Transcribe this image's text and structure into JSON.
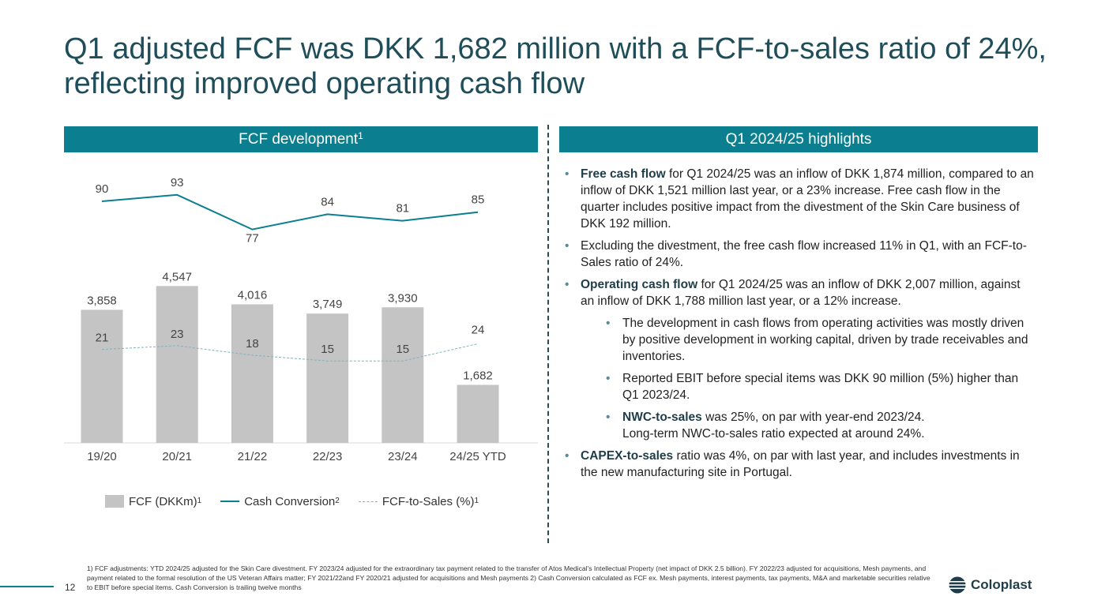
{
  "title": {
    "line1": "Q1 adjusted FCF was DKK 1,682 million with a FCF-to-sales ratio of 24%,",
    "line2": "reflecting improved operating cash flow"
  },
  "left_panel": {
    "header": "FCF development",
    "header_sup": "1"
  },
  "right_panel": {
    "header": "Q1 2024/25 highlights"
  },
  "colors": {
    "accent": "#0b7f8f",
    "bar": "#c4c4c4",
    "dashed_line": "#7fb3bc",
    "title": "#1f4e5a"
  },
  "chart_data": {
    "type": "bar",
    "categories": [
      "19/20",
      "20/21",
      "21/22",
      "22/23",
      "23/24",
      "24/25 YTD"
    ],
    "series": [
      {
        "name": "FCF (DKKm)",
        "name_sup": "1",
        "type": "bar",
        "values": [
          3858,
          4547,
          4016,
          3749,
          3930,
          1682
        ],
        "labels": [
          "3,858",
          "4,547",
          "4,016",
          "3,749",
          "3,930",
          "1,682"
        ]
      },
      {
        "name": "Cash Conversion",
        "name_sup": "2",
        "type": "line",
        "values": [
          90,
          93,
          77,
          84,
          81,
          85
        ]
      },
      {
        "name": "FCF-to-Sales (%)",
        "name_sup": "1",
        "type": "line-dashed",
        "values": [
          21,
          23,
          18,
          15,
          15,
          24
        ]
      }
    ],
    "ylim": [
      0,
      5000
    ],
    "grid": false,
    "legend": "bottom"
  },
  "highlights": [
    {
      "level": 1,
      "bold": "Free cash flow",
      "text": " for Q1 2024/25 was an inflow of DKK 1,874 million, compared to an inflow of DKK 1,521 million last year, or a 23% increase. Free cash flow in the quarter includes positive impact from the divestment of the Skin Care business of DKK 192 million."
    },
    {
      "level": 1,
      "bold": "",
      "text": "Excluding the divestment, the free cash flow increased 11% in Q1, with an FCF-to-Sales ratio of 24%."
    },
    {
      "level": 1,
      "bold": "Operating cash flow",
      "text": " for Q1 2024/25 was an inflow of DKK 2,007 million, against an inflow of DKK 1,788 million last year, or a 12% increase."
    },
    {
      "level": 2,
      "bold": "",
      "text": "The development in cash flows from operating activities was mostly driven by positive development in working capital, driven by trade receivables and inventories."
    },
    {
      "level": 2,
      "bold": "",
      "text": "Reported EBIT before special items was DKK 90 million (5%) higher than Q1 2023/24."
    },
    {
      "level": 2,
      "bold": "NWC-to-sales",
      "text": " was 25%, on par with year-end 2023/24.",
      "text2": "Long-term NWC-to-sales ratio expected at around 24%."
    },
    {
      "level": 1,
      "bold": "CAPEX-to-sales",
      "text": " ratio was 4%, on par with last year, and includes investments in the new manufacturing site in Portugal."
    }
  ],
  "footnote": "1) FCF adjustments: YTD 2024/25 adjusted for the Skin Care divestment. FY 2023/24 adjusted for the extraordinary tax payment related to the transfer of Atos Medical's Intellectual Property (net impact of DKK 2.5 billion). FY 2022/23 adjusted for acquisitions, Mesh payments, and payment related to the formal resolution of the US Veteran Affairs matter; FY 2021/22and FY 2020/21 adjusted for acquisitions and Mesh payments 2) Cash Conversion calculated as FCF ex. Mesh payments, interest payments, tax payments, M&A and marketable securities relative to EBIT before special items. Cash Conversion is trailing twelve months",
  "page_number": "12",
  "logo": {
    "text": "Coloplast",
    "icon": "coloplast-logo-icon"
  }
}
